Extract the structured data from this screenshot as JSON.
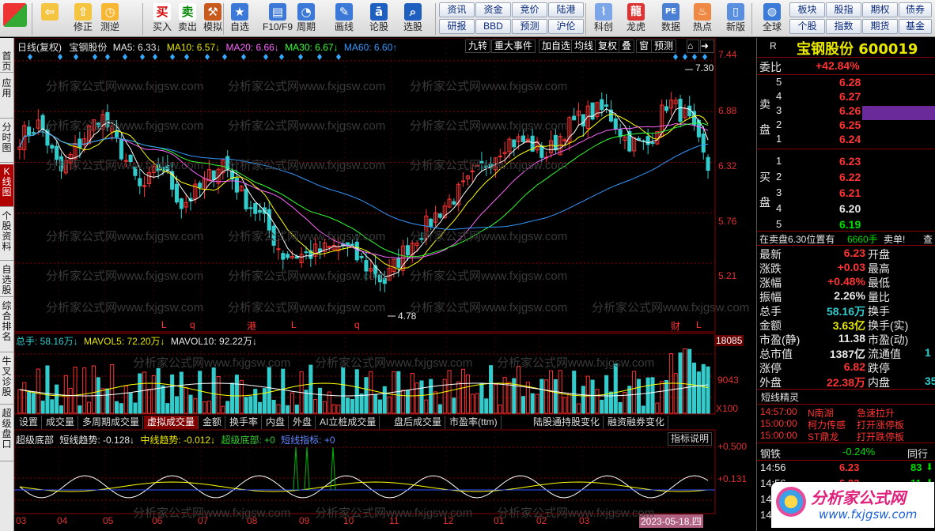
{
  "toolbar": {
    "items": [
      {
        "label": "",
        "icon": "app-logo-icon"
      },
      {
        "label": "",
        "icon": "back-arrow-icon"
      },
      {
        "label": "修正",
        "icon": "arrow-up-icon"
      },
      {
        "label": "测逆",
        "icon": "clock-icon"
      },
      {
        "label": "买入",
        "icon": "buy-icon",
        "glyph": "买"
      },
      {
        "label": "卖出",
        "icon": "sell-icon",
        "glyph": "卖"
      },
      {
        "label": "模拟",
        "icon": "hammer-icon"
      },
      {
        "label": "自选",
        "icon": "star-icon"
      },
      {
        "label": "F10/F9",
        "icon": "f10-icon"
      },
      {
        "label": "周期",
        "icon": "period-icon"
      },
      {
        "label": "画线",
        "icon": "pencil-icon"
      },
      {
        "label": "论股",
        "icon": "discuss-icon"
      },
      {
        "label": "选股",
        "icon": "pick-stock-icon"
      }
    ],
    "buttons": [
      {
        "label": "资讯",
        "row": 1,
        "col": 1
      },
      {
        "label": "资金",
        "row": 1,
        "col": 2
      },
      {
        "label": "竞价",
        "row": 1,
        "col": 3
      },
      {
        "label": "陆港",
        "row": 1,
        "col": 4
      },
      {
        "label": "研报",
        "row": 2,
        "col": 1
      },
      {
        "label": "BBD",
        "row": 2,
        "col": 2
      },
      {
        "label": "预测",
        "row": 2,
        "col": 3
      },
      {
        "label": "沪伦",
        "row": 2,
        "col": 4
      }
    ],
    "items2": [
      {
        "label": "科创",
        "icon": "sci-tech-icon"
      },
      {
        "label": "龙虎",
        "icon": "dragon-tiger-icon"
      },
      {
        "label": "数据",
        "icon": "pe-data-icon"
      },
      {
        "label": "热点",
        "icon": "hotspot-icon"
      },
      {
        "label": "新版",
        "icon": "new-version-icon"
      },
      {
        "label": "全球",
        "icon": "globe-icon"
      }
    ],
    "buttons2": [
      {
        "label": "板块",
        "row": 1,
        "col": 1
      },
      {
        "label": "股指",
        "row": 1,
        "col": 2
      },
      {
        "label": "期权",
        "row": 1,
        "col": 3
      },
      {
        "label": "债券",
        "row": 1,
        "col": 4
      },
      {
        "label": "个股",
        "row": 2,
        "col": 1
      },
      {
        "label": "指数",
        "row": 2,
        "col": 2
      },
      {
        "label": "期货",
        "row": 2,
        "col": 3
      },
      {
        "label": "基金",
        "row": 2,
        "col": 4
      }
    ]
  },
  "sidetabs": [
    "首页",
    "应用",
    "分时图",
    "K线图",
    "个股资料",
    "自选股",
    "综合排名",
    "牛叉诊股",
    "超级盘口"
  ],
  "legend": {
    "period": "日线(复权)",
    "name": "宝钢股份",
    "ma5": "MA5: 6.33↓",
    "ma10": "MA10: 6.57↓",
    "ma20": "MA20: 6.66↓",
    "ma30": "MA30: 6.67↓",
    "ma60": "MA60: 6.60↑"
  },
  "chart_buttons": [
    "九转",
    "重大事件",
    "加自选",
    "均线",
    "复权",
    "叠",
    "窗",
    "预测"
  ],
  "price_axis": [
    "7.44",
    "6.88",
    "6.32",
    "5.76",
    "5.21"
  ],
  "high_label": "7.30",
  "low_label": "4.78",
  "event_markers": [
    "L",
    "q",
    "港",
    "L",
    "q",
    "财",
    "L"
  ],
  "volume": {
    "legend": {
      "total": "总手: 58.16万↓",
      "mavol5": "MAVOL5: 72.20万↓",
      "mavol10": "MAVOL10: 92.22万↓"
    },
    "axis": [
      "18085",
      "9043",
      "X100"
    ]
  },
  "indicator_tabs": [
    "设置",
    "成交量",
    "多周期成交量",
    "虚拟成交量",
    "金额",
    "换手率",
    "内盘",
    "外盘",
    "AI立桩成交量",
    "盘后成交量",
    "市盈率(ttm)",
    "陆股通持股变化",
    "融资融券变化"
  ],
  "indicator": {
    "name": "超级底部",
    "short": "短线趋势: -0.128↓",
    "mid": "中线趋势: -0.012↓",
    "super": "超级底部: +0",
    "signal": "短线指标: +0",
    "help": "指标说明",
    "axis": [
      "+0.500",
      "+0.131"
    ]
  },
  "xaxis": [
    "03",
    "04",
    "05",
    "06",
    "07",
    "08",
    "09",
    "10",
    "11",
    "12",
    "01",
    "02",
    "03"
  ],
  "date_badge": "2023-05-18,四",
  "watermark": "分析家公式网www.fxjgsw.com",
  "quote": {
    "tag": "R",
    "title": "宝钢股份 600019",
    "webi_label": "委比",
    "webi_value": "+42.84%",
    "sell_side": "卖盘",
    "buy_side": "买盘",
    "sells": [
      {
        "n": "5",
        "p": "6.28"
      },
      {
        "n": "4",
        "p": "6.27"
      },
      {
        "n": "3",
        "p": "6.26"
      },
      {
        "n": "2",
        "p": "6.25"
      },
      {
        "n": "1",
        "p": "6.24"
      }
    ],
    "buys": [
      {
        "n": "1",
        "p": "6.23"
      },
      {
        "n": "2",
        "p": "6.22"
      },
      {
        "n": "3",
        "p": "6.21"
      },
      {
        "n": "4",
        "p": "6.20"
      },
      {
        "n": "5",
        "p": "6.19"
      }
    ],
    "notice": "在卖盘6.30位置有",
    "notice_vol": "6660手",
    "notice_act": "卖单!",
    "notice_more": "查",
    "stats_left": [
      {
        "k": "最新",
        "v": "6.23",
        "c": "red"
      },
      {
        "k": "涨跌",
        "v": "+0.03",
        "c": "red"
      },
      {
        "k": "涨幅",
        "v": "+0.48%",
        "c": "red"
      },
      {
        "k": "振幅",
        "v": "2.26%",
        "c": "wht"
      },
      {
        "k": "总手",
        "v": "58.16万",
        "c": "cyan"
      },
      {
        "k": "金额",
        "v": "3.63亿",
        "c": "yel"
      },
      {
        "k": "市盈(静)",
        "v": "11.38",
        "c": "wht"
      },
      {
        "k": "总市值",
        "v": "1387亿",
        "c": "wht"
      },
      {
        "k": "涨停",
        "v": "6.82",
        "c": "red"
      },
      {
        "k": "外盘",
        "v": "22.38万",
        "c": "red"
      }
    ],
    "stats_right": [
      {
        "k": "开盘",
        "v": ""
      },
      {
        "k": "最高",
        "v": ""
      },
      {
        "k": "最低",
        "v": ""
      },
      {
        "k": "量比",
        "v": ""
      },
      {
        "k": "换手",
        "v": ""
      },
      {
        "k": "换手(实)",
        "v": ""
      },
      {
        "k": "市盈(动)",
        "v": ""
      },
      {
        "k": "流通值",
        "v": "1"
      },
      {
        "k": "跌停",
        "v": ""
      },
      {
        "k": "内盘",
        "v": "35"
      }
    ],
    "sprite_title": "短线精灵",
    "sprite": [
      {
        "t": "14:57:00",
        "name": "N南湖",
        "act": "急速拉升"
      },
      {
        "t": "15:00:00",
        "name": "柯力传感",
        "act": "打开涨停板"
      },
      {
        "t": "15:00:00",
        "name": "ST鼎龙",
        "act": "打开跌停板"
      }
    ],
    "sector": "钢铁",
    "sector_chg": "-0.24%",
    "sector_more": "同行",
    "ticks": [
      {
        "t": "14:56",
        "p": "6.23",
        "v": "83",
        "d": "down"
      },
      {
        "t": "14:56",
        "p": "6.23",
        "v": "11",
        "d": "down"
      },
      {
        "t": "14",
        "p": "",
        "v": "",
        "d": ""
      },
      {
        "t": "14",
        "p": "",
        "v": "",
        "d": ""
      }
    ],
    "logo_text": "分析家公式网",
    "logo_url": "www.fxjgsw.com"
  },
  "chart_data": {
    "type": "candlestick",
    "title": "宝钢股份 日线(复权)",
    "ylim": [
      4.6,
      7.5
    ],
    "yticks": [
      7.44,
      6.88,
      6.32,
      5.76,
      5.21
    ],
    "x_months": [
      "03",
      "04",
      "05",
      "06",
      "07",
      "08",
      "09",
      "10",
      "11",
      "12",
      "01",
      "02",
      "03"
    ],
    "trend_close": [
      6.6,
      6.75,
      6.2,
      6.55,
      6.85,
      6.45,
      6.0,
      6.3,
      5.85,
      6.05,
      6.35,
      5.95,
      5.7,
      5.3,
      5.3,
      5.35,
      5.4,
      5.2,
      5.0,
      5.35,
      5.6,
      5.85,
      6.05,
      6.3,
      6.55,
      6.55,
      6.4,
      6.7,
      6.85,
      6.9,
      6.55,
      6.5,
      7.0,
      6.8,
      6.25
    ],
    "series": [
      {
        "name": "MA5",
        "value": 6.33,
        "color": "#ffffff"
      },
      {
        "name": "MA10",
        "value": 6.57,
        "color": "#ffff00"
      },
      {
        "name": "MA20",
        "value": 6.66,
        "color": "#ff66ff"
      },
      {
        "name": "MA30",
        "value": 6.67,
        "color": "#33ff33"
      },
      {
        "name": "MA60",
        "value": 6.6,
        "color": "#3399ff"
      }
    ],
    "high": 7.3,
    "low": 4.78,
    "last": 6.23
  },
  "colors": {
    "up": "#ff3333",
    "down": "#33cccc",
    "grid": "#8b0000",
    "accent": "#b00000"
  }
}
